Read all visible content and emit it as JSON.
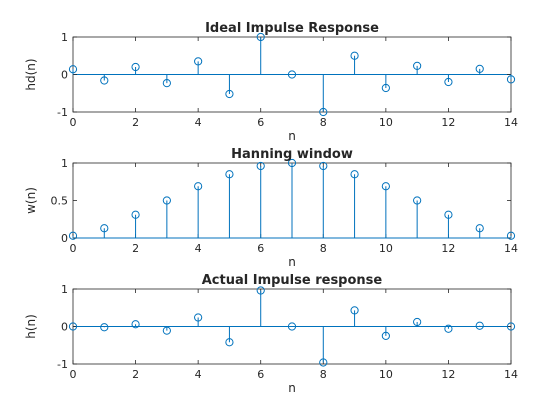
{
  "chart_data": [
    {
      "type": "stem",
      "title": "Ideal Impulse Response",
      "xlabel": "n",
      "ylabel": "hd(n)",
      "xlim": [
        0,
        14
      ],
      "ylim": [
        -1,
        1
      ],
      "xticks": [
        "0",
        "2",
        "4",
        "6",
        "8",
        "10",
        "12",
        "14"
      ],
      "yticks": [
        "-1",
        "0",
        "1"
      ],
      "x": [
        0,
        1,
        2,
        3,
        4,
        5,
        6,
        7,
        8,
        9,
        10,
        11,
        12,
        13,
        14
      ],
      "values": [
        0.14,
        -0.16,
        0.2,
        -0.23,
        0.35,
        -0.52,
        1.0,
        0.0,
        -1.0,
        0.5,
        -0.36,
        0.23,
        -0.2,
        0.15,
        -0.13
      ],
      "grid": false
    },
    {
      "type": "stem",
      "title": "Hanning window",
      "xlabel": "n",
      "ylabel": "w(n)",
      "xlim": [
        0,
        14
      ],
      "ylim": [
        0,
        1
      ],
      "xticks": [
        "0",
        "2",
        "4",
        "6",
        "8",
        "10",
        "12",
        "14"
      ],
      "yticks": [
        "0",
        "0.5",
        "1"
      ],
      "x": [
        0,
        1,
        2,
        3,
        4,
        5,
        6,
        7,
        8,
        9,
        10,
        11,
        12,
        13,
        14
      ],
      "values": [
        0.03,
        0.13,
        0.31,
        0.5,
        0.69,
        0.85,
        0.96,
        1.0,
        0.96,
        0.85,
        0.69,
        0.5,
        0.31,
        0.13,
        0.03
      ],
      "grid": false
    },
    {
      "type": "stem",
      "title": "Actual Impulse response",
      "xlabel": "n",
      "ylabel": "h(n)",
      "xlim": [
        0,
        14
      ],
      "ylim": [
        -1,
        1
      ],
      "xticks": [
        "0",
        "2",
        "4",
        "6",
        "8",
        "10",
        "12",
        "14"
      ],
      "yticks": [
        "-1",
        "0",
        "1"
      ],
      "x": [
        0,
        1,
        2,
        3,
        4,
        5,
        6,
        7,
        8,
        9,
        10,
        11,
        12,
        13,
        14
      ],
      "values": [
        0.0,
        -0.02,
        0.06,
        -0.11,
        0.24,
        -0.42,
        0.96,
        0.0,
        -0.96,
        0.43,
        -0.25,
        0.12,
        -0.06,
        0.02,
        0.0
      ],
      "grid": false
    }
  ],
  "colors": {
    "stem": "#0072bd",
    "axis": "#262626",
    "background": "#ffffff"
  }
}
